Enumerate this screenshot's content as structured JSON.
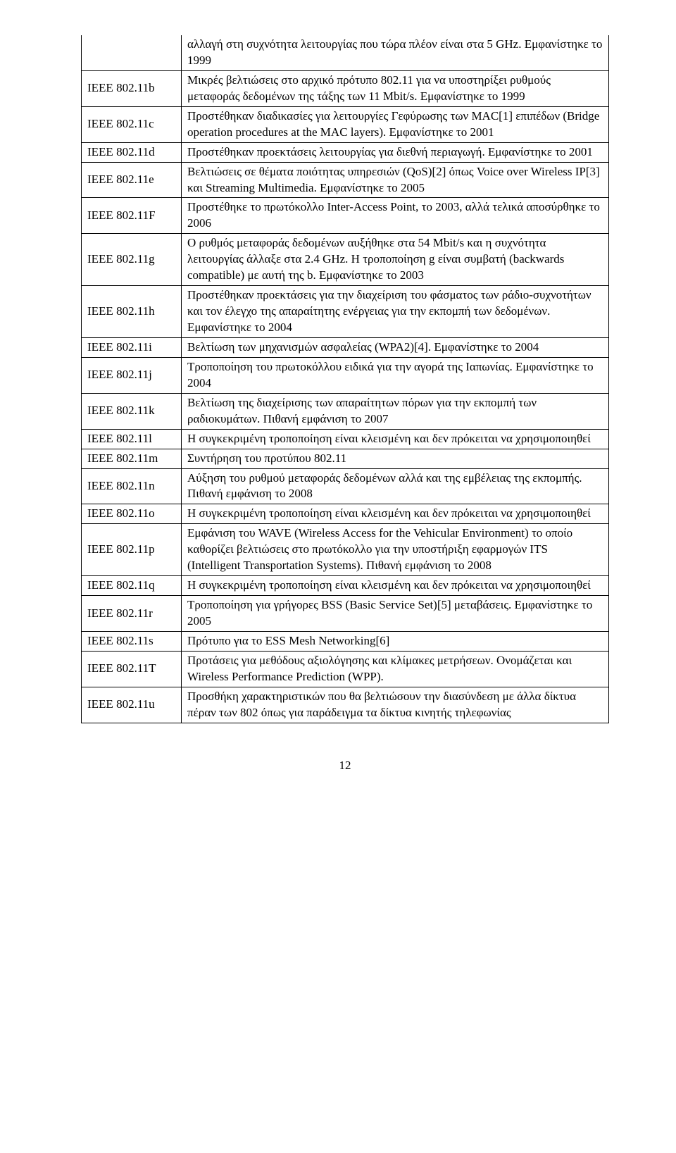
{
  "table": {
    "rows": [
      {
        "left": "",
        "right": "αλλαγή στη συχνότητα λειτουργίας που τώρα πλέον είναι στα 5 GHz. Εμφανίστηκε το 1999"
      },
      {
        "left": "IEEE 802.11b",
        "right": "Μικρές βελτιώσεις στο αρχικό πρότυπο 802.11 για να υποστηρίξει ρυθμούς μεταφοράς δεδομένων της τάξης των 11 Mbit/s. Εμφανίστηκε το 1999"
      },
      {
        "left": "IEEE 802.11c",
        "right": "Προστέθηκαν διαδικασίες για λειτουργίες Γεφύρωσης των MAC[1] επιπέδων (Bridge operation procedures at the MAC layers). Εμφανίστηκε το 2001"
      },
      {
        "left": "IEEE 802.11d",
        "right": "Προστέθηκαν προεκτάσεις λειτουργίας για διεθνή περιαγωγή. Εμφανίστηκε το 2001"
      },
      {
        "left": "IEEE 802.11e",
        "right": "Βελτιώσεις σε θέματα ποιότητας υπηρεσιών (QoS)[2] όπως Voice over Wireless IP[3] και Streaming Multimedia. Εμφανίστηκε το 2005"
      },
      {
        "left": "IEEE 802.11F",
        "right": "Προστέθηκε το πρωτόκολλο Inter-Access Point, το 2003, αλλά τελικά αποσύρθηκε το 2006"
      },
      {
        "left": "IEEE 802.11g",
        "right": "Ο ρυθμός μεταφοράς δεδομένων αυξήθηκε στα 54 Mbit/s και η συχνότητα λειτουργίας άλλαξε στα 2.4 GHz. Η τροποποίηση g είναι συμβατή (backwards compatible) με αυτή της b. Εμφανίστηκε το 2003"
      },
      {
        "left": "IEEE 802.11h",
        "right": "Προστέθηκαν προεκτάσεις για την διαχείριση του φάσματος των ράδιο-συχνοτήτων και τον έλεγχο της απαραίτητης ενέργειας για την εκπομπή των δεδομένων. Εμφανίστηκε το 2004"
      },
      {
        "left": "IEEE 802.11i",
        "right": "Βελτίωση των μηχανισμών ασφαλείας (WPA2)[4]. Εμφανίστηκε το 2004"
      },
      {
        "left": "IEEE 802.11j",
        "right": "Τροποποίηση του πρωτοκόλλου ειδικά για την αγορά της Ιαπωνίας. Εμφανίστηκε το 2004"
      },
      {
        "left": "IEEE 802.11k",
        "right": "Βελτίωση της διαχείρισης των απαραίτητων πόρων για την εκπομπή των ραδιοκυμάτων. Πιθανή εμφάνιση το 2007"
      },
      {
        "left": "IEEE 802.11l",
        "right": "Η συγκεκριμένη τροποποίηση είναι κλεισμένη και δεν πρόκειται να χρησιμοποιηθεί"
      },
      {
        "left": "IEEE 802.11m",
        "right": "Συντήρηση του προτύπου 802.11"
      },
      {
        "left": "IEEE 802.11n",
        "right": "Αύξηση του ρυθμού μεταφοράς δεδομένων αλλά και της εμβέλειας της εκπομπής. Πιθανή εμφάνιση το 2008"
      },
      {
        "left": "IEEE 802.11o",
        "right": "Η συγκεκριμένη τροποποίηση είναι κλεισμένη και δεν πρόκειται να χρησιμοποιηθεί"
      },
      {
        "left": "IEEE 802.11p",
        "right": "Εμφάνιση του WAVE (Wireless Access for the Vehicular Environment) το οποίο καθορίζει βελτιώσεις στο πρωτόκολλο για την υποστήριξη εφαρμογών ITS (Intelligent Transportation Systems). Πιθανή εμφάνιση το 2008"
      },
      {
        "left": "IEEE 802.11q",
        "right": "Η συγκεκριμένη τροποποίηση είναι κλεισμένη και δεν πρόκειται να χρησιμοποιηθεί"
      },
      {
        "left": "IEEE 802.11r",
        "right": "Τροποποίηση για γρήγορες BSS (Basic Service Set)[5] μεταβάσεις. Εμφανίστηκε το 2005"
      },
      {
        "left": "IEEE 802.11s",
        "right": "Πρότυπο για το ESS Mesh Networking[6]"
      },
      {
        "left": "IEEE 802.11T",
        "right": "Προτάσεις για μεθόδους αξιολόγησης και κλίμακες μετρήσεων. Ονομάζεται και Wireless Performance Prediction (WPP)."
      },
      {
        "left": "IEEE 802.11u",
        "right": "Προσθήκη χαρακτηριστικών που θα βελτιώσουν την διασύνδεση με άλλα δίκτυα πέραν των 802 όπως για παράδειγμα τα δίκτυα κινητής τηλεφωνίας"
      }
    ]
  },
  "page_number": "12"
}
